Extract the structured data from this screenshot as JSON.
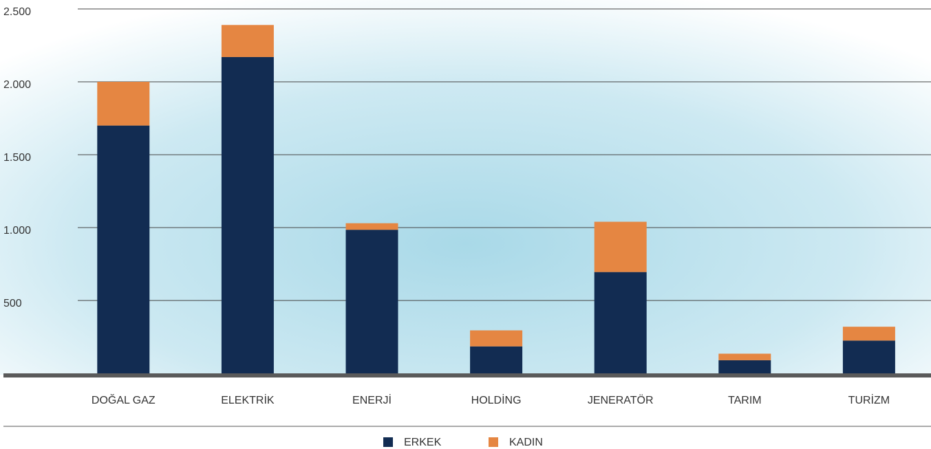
{
  "chart_data": {
    "type": "stacked_bar",
    "categories": [
      "DOĞAL GAZ",
      "ELEKTRİK",
      "ENERJİ",
      "HOLDİNG",
      "JENERATÖR",
      "TARIM",
      "TURİZM"
    ],
    "series": [
      {
        "name": "ERKEK",
        "color": "#122c52",
        "values": [
          1700,
          2170,
          985,
          185,
          695,
          90,
          225
        ]
      },
      {
        "name": "KADIN",
        "color": "#e58642",
        "values": [
          300,
          220,
          45,
          110,
          345,
          45,
          95
        ]
      }
    ],
    "ylim": [
      0,
      2500
    ],
    "yticks": [
      500,
      {
        "value": 1000,
        "label": "1.000"
      },
      {
        "value": 1500,
        "label": "1.500"
      },
      {
        "value": 2000,
        "label": "2.000"
      },
      {
        "value": 2500,
        "label": "2.500"
      }
    ],
    "grid": true,
    "legend": "bottom"
  }
}
